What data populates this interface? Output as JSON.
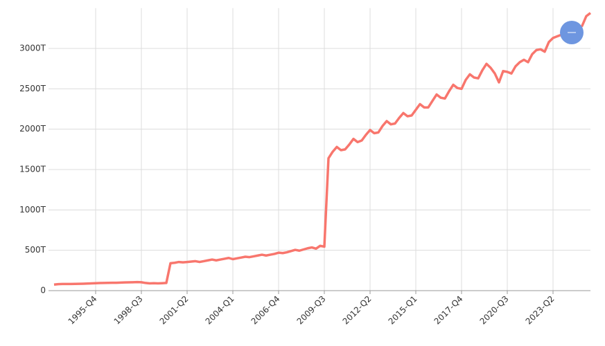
{
  "chart_data": {
    "type": "line",
    "categories": [
      null,
      null,
      null,
      null,
      null,
      null,
      null,
      null,
      null,
      null,
      "1995-Q4",
      null,
      null,
      null,
      null,
      null,
      null,
      null,
      null,
      null,
      null,
      "1998-Q3",
      null,
      null,
      null,
      null,
      null,
      null,
      null,
      null,
      null,
      null,
      "2001-Q2",
      null,
      null,
      null,
      null,
      null,
      null,
      null,
      null,
      null,
      null,
      "2004-Q1",
      null,
      null,
      null,
      null,
      null,
      null,
      null,
      null,
      null,
      null,
      "2006-Q4",
      null,
      null,
      null,
      null,
      null,
      null,
      null,
      null,
      null,
      null,
      "2009-Q3",
      null,
      null,
      null,
      null,
      null,
      null,
      null,
      null,
      null,
      null,
      "2012-Q2",
      null,
      null,
      null,
      null,
      null,
      null,
      null,
      null,
      null,
      null,
      "2015-Q1",
      null,
      null,
      null,
      null,
      null,
      null,
      null,
      null,
      null,
      null,
      "2017-Q4",
      null,
      null,
      null,
      null,
      null,
      null,
      null,
      null,
      null,
      null,
      "2020-Q3",
      null,
      null,
      null,
      null,
      null,
      null,
      null,
      null,
      null,
      null,
      "2023-Q2",
      null,
      null,
      null,
      null,
      null,
      null,
      null,
      null,
      null
    ],
    "values": [
      75,
      80,
      82,
      82,
      83,
      84,
      85,
      86,
      88,
      90,
      92,
      94,
      95,
      96,
      97,
      98,
      100,
      102,
      103,
      104,
      106,
      104,
      95,
      90,
      92,
      90,
      92,
      95,
      340,
      345,
      355,
      350,
      355,
      360,
      365,
      355,
      365,
      375,
      385,
      375,
      385,
      395,
      405,
      390,
      400,
      410,
      420,
      415,
      425,
      435,
      445,
      435,
      445,
      455,
      470,
      465,
      475,
      490,
      505,
      495,
      510,
      525,
      535,
      520,
      555,
      545,
      1640,
      1720,
      1780,
      1740,
      1750,
      1810,
      1880,
      1840,
      1860,
      1930,
      1990,
      1950,
      1960,
      2040,
      2100,
      2060,
      2070,
      2140,
      2200,
      2160,
      2170,
      2240,
      2310,
      2270,
      2270,
      2350,
      2430,
      2390,
      2380,
      2470,
      2550,
      2510,
      2500,
      2610,
      2680,
      2640,
      2630,
      2730,
      2810,
      2760,
      2690,
      2580,
      2720,
      2710,
      2690,
      2780,
      2830,
      2860,
      2830,
      2930,
      2980,
      2990,
      2960,
      3080,
      3130,
      3150,
      3170,
      3200,
      3210,
      3220,
      3240,
      3280,
      3400,
      3440
    ],
    "color": "#f8766d",
    "ylim": [
      0,
      3500
    ],
    "yticks": [
      0,
      {
        "value": 500,
        "label": "500T"
      },
      {
        "value": 1000,
        "label": "1000T"
      },
      {
        "value": 1500,
        "label": "1500T"
      },
      {
        "value": 2000,
        "label": "2000T"
      },
      {
        "value": 2500,
        "label": "2500T"
      },
      {
        "value": 3000,
        "label": "3000T"
      }
    ],
    "grid": true
  }
}
